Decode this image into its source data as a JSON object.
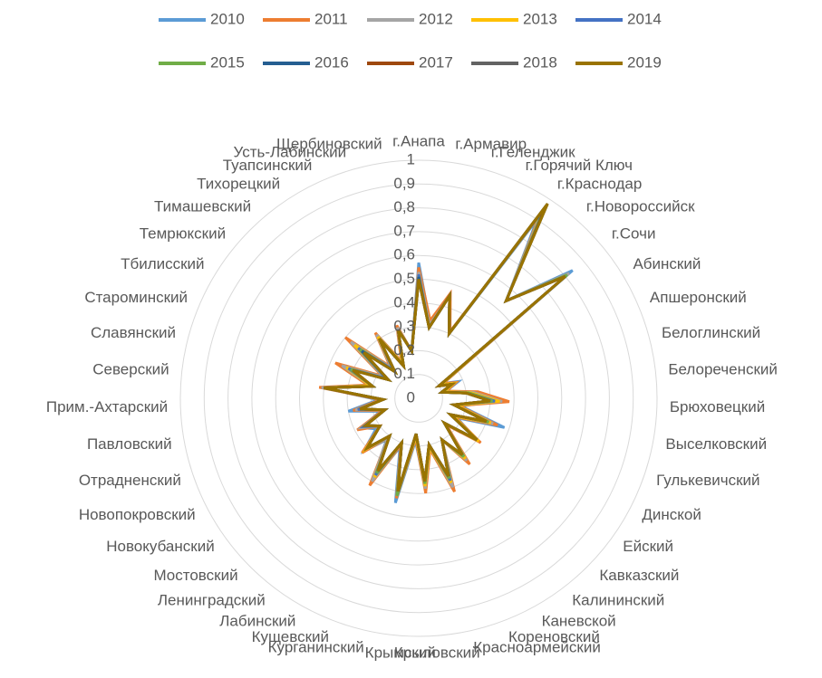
{
  "chart_data": {
    "type": "radar",
    "categories": [
      "г.Анапа",
      "г.Армавир",
      "г.Геленджик",
      "г.Горячий Ключ",
      "г.Краснодар",
      "г.Новороссийск",
      "г.Сочи",
      "Абинский",
      "Апшеронский",
      "Белоглинский",
      "Белореченский",
      "Брюховецкий",
      "Выселковский",
      "Гулькевичский",
      "Динской",
      "Ейский",
      "Кавказский",
      "Калининский",
      "Каневской",
      "Кореновский",
      "Красноармейский",
      "Крыловский",
      "Крымский",
      "Курганинский",
      "Кущевский",
      "Лабинский",
      "Ленинградский",
      "Мостовский",
      "Новокубанский",
      "Новопокровский",
      "Отрадненский",
      "Павловский",
      "Прим.-Ахтарский",
      "Северский",
      "Славянский",
      "Староминский",
      "Тбилисский",
      "Темрюкский",
      "Тимашевский",
      "Тихорецкий",
      "Туапсинский",
      "Усть-Лабинский",
      "Щербиновский"
    ],
    "ylim": [
      0,
      1
    ],
    "yticks": [
      0,
      {
        "value": 0.1,
        "label": "0,1"
      },
      {
        "value": 0.2,
        "label": "0,2"
      },
      {
        "value": 0.3,
        "label": "0,3"
      },
      {
        "value": 0.4,
        "label": "0,4"
      },
      {
        "value": 0.5,
        "label": "0,5"
      },
      {
        "value": 0.6,
        "label": "0,6"
      },
      {
        "value": 0.7,
        "label": "0,7"
      },
      {
        "value": 0.8,
        "label": "0,8"
      },
      {
        "value": 0.9,
        "label": "0,9"
      },
      1
    ],
    "grid": true,
    "legend": "top",
    "series": [
      {
        "name": "2010",
        "color": "#5b9bd5",
        "values": [
          0.57,
          0.32,
          0.45,
          0.3,
          0.9,
          0.55,
          0.84,
          0.12,
          0.18,
          0.12,
          0.22,
          0.33,
          0.18,
          0.38,
          0.18,
          0.3,
          0.15,
          0.32,
          0.2,
          0.38,
          0.22,
          0.38,
          0.18,
          0.45,
          0.22,
          0.4,
          0.22,
          0.32,
          0.22,
          0.27,
          0.17,
          0.3,
          0.17,
          0.4,
          0.22,
          0.33,
          0.18,
          0.33,
          0.17,
          0.32,
          0.17,
          0.3,
          0.2
        ]
      },
      {
        "name": "2011",
        "color": "#ed7d31",
        "values": [
          0.55,
          0.33,
          0.46,
          0.31,
          0.92,
          0.55,
          0.82,
          0.12,
          0.17,
          0.12,
          0.25,
          0.38,
          0.17,
          0.35,
          0.17,
          0.32,
          0.16,
          0.35,
          0.2,
          0.42,
          0.22,
          0.4,
          0.17,
          0.43,
          0.21,
          0.42,
          0.21,
          0.33,
          0.2,
          0.29,
          0.16,
          0.28,
          0.16,
          0.42,
          0.22,
          0.38,
          0.18,
          0.4,
          0.18,
          0.33,
          0.17,
          0.32,
          0.2
        ]
      },
      {
        "name": "2012",
        "color": "#a5a5a5",
        "values": [
          0.53,
          0.31,
          0.45,
          0.3,
          0.93,
          0.55,
          0.82,
          0.11,
          0.16,
          0.11,
          0.23,
          0.35,
          0.16,
          0.33,
          0.16,
          0.31,
          0.15,
          0.33,
          0.2,
          0.4,
          0.21,
          0.38,
          0.16,
          0.42,
          0.2,
          0.4,
          0.21,
          0.31,
          0.2,
          0.27,
          0.15,
          0.27,
          0.15,
          0.41,
          0.21,
          0.35,
          0.17,
          0.37,
          0.17,
          0.32,
          0.16,
          0.31,
          0.2
        ]
      },
      {
        "name": "2013",
        "color": "#ffc000",
        "values": [
          0.52,
          0.3,
          0.45,
          0.3,
          0.94,
          0.55,
          0.81,
          0.11,
          0.16,
          0.11,
          0.22,
          0.34,
          0.16,
          0.32,
          0.16,
          0.31,
          0.15,
          0.32,
          0.2,
          0.38,
          0.21,
          0.37,
          0.16,
          0.41,
          0.2,
          0.38,
          0.2,
          0.31,
          0.2,
          0.26,
          0.15,
          0.26,
          0.15,
          0.4,
          0.21,
          0.33,
          0.16,
          0.35,
          0.16,
          0.31,
          0.16,
          0.3,
          0.2
        ]
      },
      {
        "name": "2014",
        "color": "#4472c4",
        "values": [
          0.52,
          0.3,
          0.45,
          0.3,
          0.95,
          0.55,
          0.81,
          0.1,
          0.15,
          0.1,
          0.21,
          0.32,
          0.15,
          0.31,
          0.15,
          0.3,
          0.15,
          0.31,
          0.2,
          0.37,
          0.2,
          0.36,
          0.15,
          0.41,
          0.2,
          0.37,
          0.2,
          0.3,
          0.2,
          0.26,
          0.15,
          0.26,
          0.15,
          0.4,
          0.2,
          0.32,
          0.16,
          0.33,
          0.16,
          0.3,
          0.15,
          0.3,
          0.2
        ]
      },
      {
        "name": "2015",
        "color": "#70ad47",
        "values": [
          0.51,
          0.3,
          0.45,
          0.3,
          0.96,
          0.55,
          0.81,
          0.1,
          0.15,
          0.1,
          0.21,
          0.31,
          0.15,
          0.31,
          0.15,
          0.3,
          0.15,
          0.31,
          0.2,
          0.36,
          0.2,
          0.36,
          0.15,
          0.42,
          0.2,
          0.36,
          0.2,
          0.3,
          0.2,
          0.25,
          0.15,
          0.25,
          0.15,
          0.4,
          0.2,
          0.31,
          0.15,
          0.32,
          0.15,
          0.3,
          0.15,
          0.3,
          0.2
        ]
      },
      {
        "name": "2016",
        "color": "#255e91",
        "values": [
          0.51,
          0.3,
          0.45,
          0.3,
          0.97,
          0.55,
          0.8,
          0.1,
          0.15,
          0.1,
          0.2,
          0.3,
          0.15,
          0.3,
          0.15,
          0.3,
          0.15,
          0.3,
          0.2,
          0.35,
          0.2,
          0.35,
          0.15,
          0.4,
          0.2,
          0.35,
          0.2,
          0.3,
          0.2,
          0.25,
          0.15,
          0.25,
          0.15,
          0.4,
          0.2,
          0.3,
          0.15,
          0.31,
          0.15,
          0.3,
          0.15,
          0.3,
          0.2
        ]
      },
      {
        "name": "2017",
        "color": "#9e480e",
        "values": [
          0.5,
          0.3,
          0.45,
          0.3,
          0.97,
          0.55,
          0.8,
          0.1,
          0.15,
          0.1,
          0.2,
          0.3,
          0.15,
          0.3,
          0.15,
          0.3,
          0.15,
          0.3,
          0.2,
          0.35,
          0.2,
          0.35,
          0.15,
          0.4,
          0.2,
          0.35,
          0.2,
          0.3,
          0.2,
          0.25,
          0.15,
          0.25,
          0.15,
          0.4,
          0.2,
          0.3,
          0.15,
          0.3,
          0.15,
          0.3,
          0.15,
          0.3,
          0.2
        ]
      },
      {
        "name": "2018",
        "color": "#636363",
        "values": [
          0.5,
          0.3,
          0.45,
          0.3,
          0.98,
          0.55,
          0.8,
          0.1,
          0.15,
          0.1,
          0.2,
          0.3,
          0.15,
          0.3,
          0.15,
          0.3,
          0.15,
          0.3,
          0.2,
          0.35,
          0.2,
          0.35,
          0.15,
          0.4,
          0.2,
          0.35,
          0.2,
          0.3,
          0.2,
          0.25,
          0.15,
          0.25,
          0.15,
          0.4,
          0.2,
          0.3,
          0.15,
          0.3,
          0.15,
          0.3,
          0.15,
          0.3,
          0.2
        ]
      },
      {
        "name": "2019",
        "color": "#997300",
        "values": [
          0.5,
          0.3,
          0.45,
          0.3,
          0.98,
          0.55,
          0.8,
          0.1,
          0.15,
          0.1,
          0.2,
          0.3,
          0.15,
          0.3,
          0.15,
          0.3,
          0.15,
          0.3,
          0.2,
          0.35,
          0.2,
          0.35,
          0.15,
          0.4,
          0.2,
          0.35,
          0.2,
          0.3,
          0.2,
          0.25,
          0.15,
          0.25,
          0.15,
          0.4,
          0.2,
          0.3,
          0.15,
          0.3,
          0.15,
          0.3,
          0.15,
          0.3,
          0.2
        ]
      }
    ]
  }
}
